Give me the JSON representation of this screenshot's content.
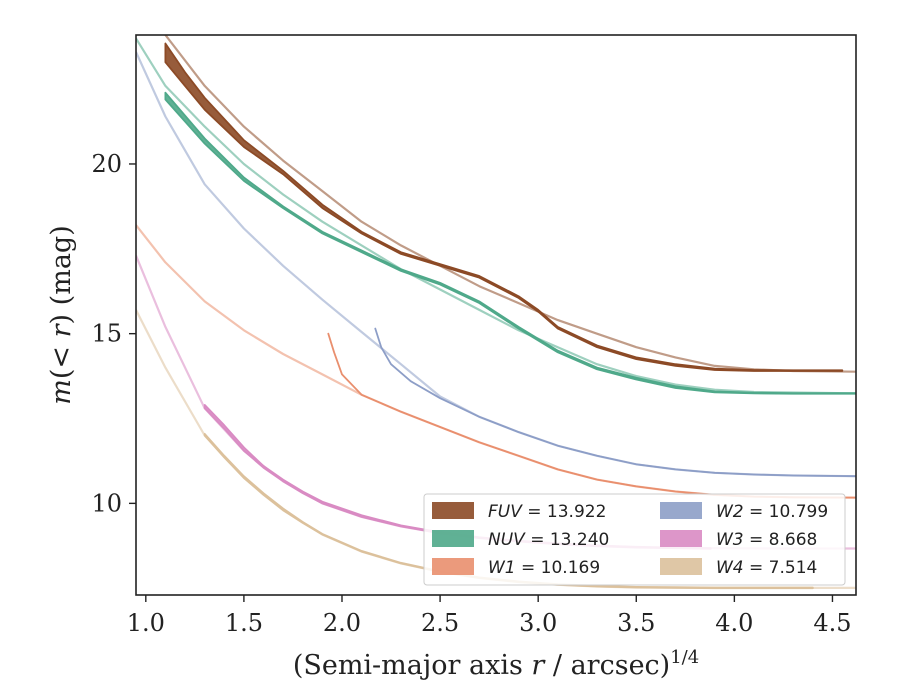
{
  "chart_data": {
    "type": "line",
    "xlabel": "(Semi-major axis r / arcsec)^1/4",
    "ylabel": "m(< r) (mag)",
    "xlim": [
      0.95,
      4.62
    ],
    "ylim": [
      23.8,
      7.3
    ],
    "y_inverted": true,
    "x_ticks": [
      "1.0",
      "1.5",
      "2.0",
      "2.5",
      "3.0",
      "3.5",
      "4.0",
      "4.5"
    ],
    "y_ticks": [
      "10",
      "15",
      "20"
    ],
    "legend_position": "lower-right",
    "grid": false,
    "series": [
      {
        "name": "FUV = 13.922",
        "color": "#8c4a26",
        "band_points": [
          [
            1.1,
            23.55,
            23.0
          ],
          [
            1.2,
            22.7,
            22.3
          ],
          [
            1.3,
            21.95,
            21.6
          ],
          [
            1.5,
            20.7,
            20.5
          ],
          [
            1.7,
            19.8,
            19.7
          ],
          [
            1.9,
            18.8,
            18.7
          ],
          [
            2.1,
            18.0,
            17.95
          ],
          [
            2.3,
            17.4,
            17.35
          ],
          [
            2.5,
            17.05,
            17.0
          ],
          [
            2.7,
            16.7,
            16.65
          ],
          [
            2.9,
            16.1,
            16.05
          ],
          [
            3.0,
            15.7,
            15.65
          ],
          [
            3.1,
            15.2,
            15.15
          ],
          [
            3.3,
            14.65,
            14.6
          ],
          [
            3.5,
            14.3,
            14.25
          ],
          [
            3.7,
            14.1,
            14.05
          ],
          [
            3.9,
            13.97,
            13.93
          ],
          [
            4.1,
            13.93,
            13.9
          ],
          [
            4.3,
            13.92,
            13.9
          ],
          [
            4.55,
            13.92,
            13.9
          ]
        ],
        "model_points": [
          [
            1.1,
            23.8
          ],
          [
            1.3,
            22.3
          ],
          [
            1.5,
            21.1
          ],
          [
            1.7,
            20.1
          ],
          [
            1.9,
            19.2
          ],
          [
            2.1,
            18.3
          ],
          [
            2.3,
            17.6
          ],
          [
            2.5,
            17.0
          ],
          [
            2.7,
            16.4
          ],
          [
            2.9,
            15.9
          ],
          [
            3.1,
            15.4
          ],
          [
            3.3,
            15.0
          ],
          [
            3.5,
            14.6
          ],
          [
            3.7,
            14.3
          ],
          [
            3.9,
            14.05
          ],
          [
            4.1,
            13.95
          ],
          [
            4.3,
            13.9
          ],
          [
            4.62,
            13.88
          ]
        ]
      },
      {
        "name": "NUV = 13.240",
        "color": "#4fa98a",
        "band_points": [
          [
            1.1,
            22.1,
            21.9
          ],
          [
            1.3,
            20.75,
            20.6
          ],
          [
            1.5,
            19.6,
            19.5
          ],
          [
            1.7,
            18.75,
            18.7
          ],
          [
            1.9,
            18.0,
            17.95
          ],
          [
            2.1,
            17.45,
            17.4
          ],
          [
            2.3,
            16.9,
            16.85
          ],
          [
            2.5,
            16.5,
            16.45
          ],
          [
            2.7,
            15.95,
            15.9
          ],
          [
            2.9,
            15.2,
            15.15
          ],
          [
            3.1,
            14.5,
            14.45
          ],
          [
            3.3,
            14.0,
            13.95
          ],
          [
            3.5,
            13.7,
            13.65
          ],
          [
            3.7,
            13.45,
            13.4
          ],
          [
            3.9,
            13.3,
            13.27
          ],
          [
            4.1,
            13.26,
            13.24
          ],
          [
            4.3,
            13.25,
            13.23
          ],
          [
            4.62,
            13.25,
            13.23
          ]
        ],
        "model_points": [
          [
            0.95,
            23.7
          ],
          [
            1.1,
            22.3
          ],
          [
            1.3,
            21.1
          ],
          [
            1.5,
            20.0
          ],
          [
            1.7,
            19.1
          ],
          [
            1.9,
            18.3
          ],
          [
            2.1,
            17.6
          ],
          [
            2.3,
            16.9
          ],
          [
            2.5,
            16.3
          ],
          [
            2.7,
            15.7
          ],
          [
            2.9,
            15.1
          ],
          [
            3.1,
            14.6
          ],
          [
            3.3,
            14.1
          ],
          [
            3.5,
            13.75
          ],
          [
            3.7,
            13.5
          ],
          [
            3.9,
            13.35
          ],
          [
            4.1,
            13.28
          ],
          [
            4.62,
            13.24
          ]
        ]
      },
      {
        "name": "W1 = 10.169",
        "color": "#e98f6e",
        "band_points": [
          [
            1.93,
            15.0,
            15.0
          ],
          [
            1.96,
            14.45,
            14.45
          ],
          [
            2.0,
            13.8,
            13.8
          ],
          [
            2.1,
            13.2,
            13.2
          ],
          [
            2.3,
            12.7,
            12.7
          ],
          [
            2.5,
            12.25,
            12.25
          ],
          [
            2.7,
            11.8,
            11.8
          ],
          [
            2.9,
            11.4,
            11.4
          ],
          [
            3.1,
            11.0,
            11.0
          ],
          [
            3.3,
            10.7,
            10.7
          ],
          [
            3.5,
            10.5,
            10.5
          ],
          [
            3.7,
            10.35,
            10.35
          ],
          [
            3.9,
            10.25,
            10.25
          ],
          [
            4.1,
            10.2,
            10.2
          ],
          [
            4.3,
            10.18,
            10.18
          ],
          [
            4.62,
            10.17,
            10.17
          ]
        ],
        "model_points": [
          [
            0.95,
            18.2
          ],
          [
            1.1,
            17.1
          ],
          [
            1.3,
            15.95
          ],
          [
            1.5,
            15.1
          ],
          [
            1.7,
            14.4
          ],
          [
            1.9,
            13.8
          ],
          [
            2.1,
            13.2
          ],
          [
            2.3,
            12.7
          ],
          [
            2.5,
            12.25
          ],
          [
            2.7,
            11.8
          ],
          [
            2.9,
            11.4
          ],
          [
            3.1,
            11.0
          ],
          [
            3.3,
            10.7
          ],
          [
            3.5,
            10.5
          ],
          [
            3.7,
            10.35
          ],
          [
            3.9,
            10.25
          ],
          [
            4.1,
            10.2
          ],
          [
            4.3,
            10.18
          ],
          [
            4.62,
            10.17
          ]
        ]
      },
      {
        "name": "W2 = 10.799",
        "color": "#8d9ec7",
        "band_points": [
          [
            2.17,
            15.15,
            15.15
          ],
          [
            2.2,
            14.6,
            14.6
          ],
          [
            2.25,
            14.1,
            14.1
          ],
          [
            2.35,
            13.6,
            13.6
          ],
          [
            2.5,
            13.1,
            13.1
          ],
          [
            2.7,
            12.55,
            12.55
          ],
          [
            2.9,
            12.1,
            12.1
          ],
          [
            3.1,
            11.7,
            11.7
          ],
          [
            3.3,
            11.4,
            11.4
          ],
          [
            3.5,
            11.15,
            11.15
          ],
          [
            3.7,
            11.0,
            11.0
          ],
          [
            3.9,
            10.9,
            10.9
          ],
          [
            4.1,
            10.85,
            10.85
          ],
          [
            4.3,
            10.82,
            10.82
          ],
          [
            4.62,
            10.8,
            10.8
          ]
        ],
        "model_points": [
          [
            0.95,
            23.3
          ],
          [
            1.1,
            21.4
          ],
          [
            1.3,
            19.4
          ],
          [
            1.5,
            18.1
          ],
          [
            1.7,
            17.0
          ],
          [
            1.9,
            16.0
          ],
          [
            2.1,
            15.05
          ],
          [
            2.3,
            14.1
          ],
          [
            2.5,
            13.15
          ],
          [
            2.7,
            12.55
          ],
          [
            2.9,
            12.1
          ],
          [
            3.1,
            11.7
          ],
          [
            3.3,
            11.4
          ],
          [
            3.5,
            11.15
          ],
          [
            3.7,
            11.0
          ],
          [
            3.9,
            10.9
          ],
          [
            4.1,
            10.85
          ],
          [
            4.3,
            10.82
          ],
          [
            4.62,
            10.8
          ]
        ]
      },
      {
        "name": "W3 = 8.668",
        "color": "#d98bc3",
        "band_points": [
          [
            1.3,
            12.9,
            12.8
          ],
          [
            1.4,
            12.3,
            12.2
          ],
          [
            1.5,
            11.65,
            11.55
          ],
          [
            1.6,
            11.1,
            11.05
          ],
          [
            1.7,
            10.7,
            10.65
          ],
          [
            1.8,
            10.35,
            10.3
          ],
          [
            1.9,
            10.05,
            10.0
          ],
          [
            2.1,
            9.65,
            9.6
          ],
          [
            2.3,
            9.35,
            9.32
          ],
          [
            2.5,
            9.15,
            9.12
          ],
          [
            2.7,
            9.0,
            8.98
          ],
          [
            2.9,
            8.9,
            8.88
          ],
          [
            3.1,
            8.82,
            8.8
          ],
          [
            3.3,
            8.76,
            8.74
          ],
          [
            3.5,
            8.72,
            8.7
          ],
          [
            3.7,
            8.7,
            8.68
          ],
          [
            3.88,
            8.68,
            8.66
          ]
        ],
        "model_points": [
          [
            0.95,
            17.3
          ],
          [
            1.1,
            15.2
          ],
          [
            1.3,
            12.8
          ],
          [
            1.5,
            11.55
          ],
          [
            1.7,
            10.65
          ],
          [
            1.9,
            10.0
          ],
          [
            2.1,
            9.6
          ],
          [
            2.3,
            9.32
          ],
          [
            2.5,
            9.12
          ],
          [
            2.7,
            8.98
          ],
          [
            2.9,
            8.88
          ],
          [
            3.1,
            8.8
          ],
          [
            3.3,
            8.74
          ],
          [
            3.5,
            8.7
          ],
          [
            3.9,
            8.68
          ],
          [
            4.3,
            8.67
          ],
          [
            4.62,
            8.67
          ]
        ]
      },
      {
        "name": "W4 = 7.514",
        "color": "#dcc19c",
        "band_points": [
          [
            1.3,
            12.05,
            12.0
          ],
          [
            1.4,
            11.4,
            11.35
          ],
          [
            1.5,
            10.8,
            10.75
          ],
          [
            1.6,
            10.3,
            10.25
          ],
          [
            1.7,
            9.85,
            9.8
          ],
          [
            1.8,
            9.45,
            9.42
          ],
          [
            1.9,
            9.1,
            9.08
          ],
          [
            2.1,
            8.6,
            8.58
          ],
          [
            2.3,
            8.25,
            8.23
          ],
          [
            2.5,
            8.0,
            7.98
          ],
          [
            2.7,
            7.82,
            7.8
          ],
          [
            2.9,
            7.7,
            7.68
          ],
          [
            3.1,
            7.62,
            7.6
          ],
          [
            3.3,
            7.57,
            7.55
          ],
          [
            3.5,
            7.54,
            7.52
          ],
          [
            3.7,
            7.53,
            7.51
          ],
          [
            3.9,
            7.52,
            7.5
          ],
          [
            4.1,
            7.52,
            7.5
          ],
          [
            4.4,
            7.52,
            7.5
          ]
        ],
        "model_points": [
          [
            0.95,
            15.7
          ],
          [
            1.1,
            14.0
          ],
          [
            1.3,
            12.0
          ],
          [
            1.5,
            10.75
          ],
          [
            1.7,
            9.8
          ],
          [
            1.9,
            9.08
          ],
          [
            2.1,
            8.58
          ],
          [
            2.3,
            8.23
          ],
          [
            2.5,
            7.98
          ],
          [
            2.7,
            7.8
          ],
          [
            2.9,
            7.68
          ],
          [
            3.1,
            7.6
          ],
          [
            3.3,
            7.55
          ],
          [
            3.5,
            7.52
          ],
          [
            3.9,
            7.51
          ],
          [
            4.62,
            7.51
          ]
        ]
      }
    ]
  }
}
